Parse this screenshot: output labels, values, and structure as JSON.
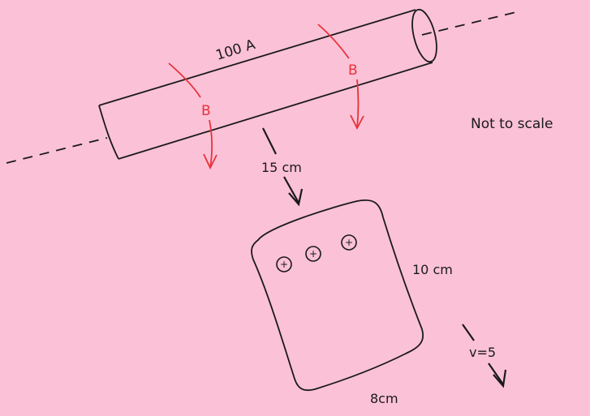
{
  "wire": {
    "current_label": "100 A",
    "field_label_left": "B",
    "field_label_right": "B"
  },
  "note": "Not to scale",
  "distance_label": "15 cm",
  "loop": {
    "height_label": "10 cm",
    "width_label": "8cm",
    "symbols": [
      "+",
      "+",
      "+"
    ]
  },
  "velocity_label": "v=5",
  "colors": {
    "background": "#fbc1d7",
    "ink": "#1a1a1a",
    "field": "#e8323a"
  }
}
